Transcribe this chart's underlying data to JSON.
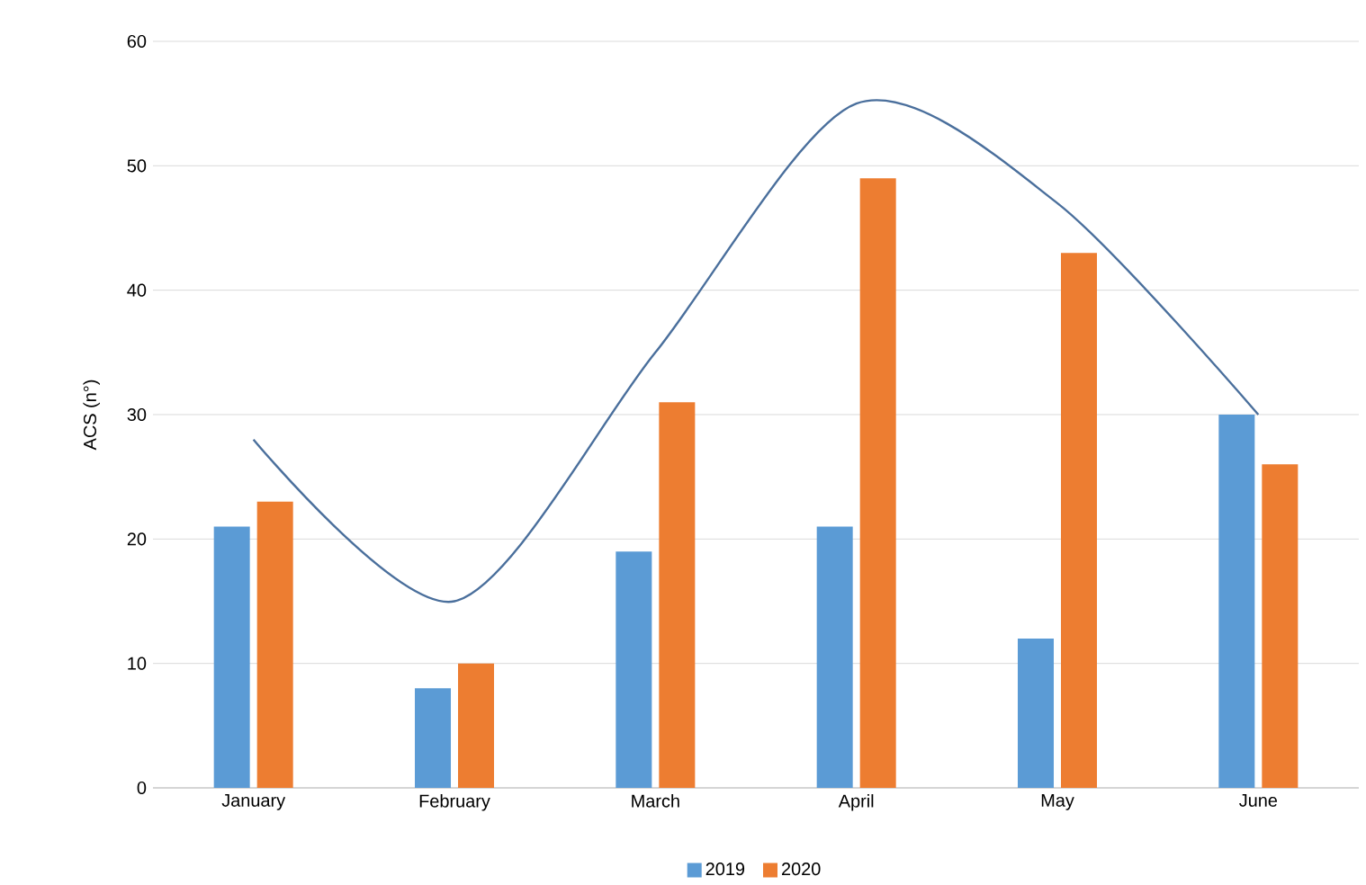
{
  "chart_data": {
    "type": "bar",
    "ylabel": "ACS (n°)",
    "categories": [
      "January",
      "February",
      "March",
      "April",
      "May",
      "June"
    ],
    "series": [
      {
        "name": "2019",
        "color": "#5b9bd5",
        "values": [
          21,
          8,
          19,
          21,
          12,
          30
        ]
      },
      {
        "name": "2020",
        "color": "#ed7d31",
        "values": [
          23,
          10,
          31,
          49,
          43,
          26
        ]
      },
      {
        "type": "line",
        "color": "#4a6f9c",
        "values": [
          28,
          15,
          35,
          55,
          47,
          30
        ]
      }
    ],
    "ylim": [
      0,
      60
    ],
    "yticks": [
      0,
      10,
      20,
      30,
      40,
      50,
      60
    ],
    "grid": "y",
    "legend": "bottom"
  }
}
